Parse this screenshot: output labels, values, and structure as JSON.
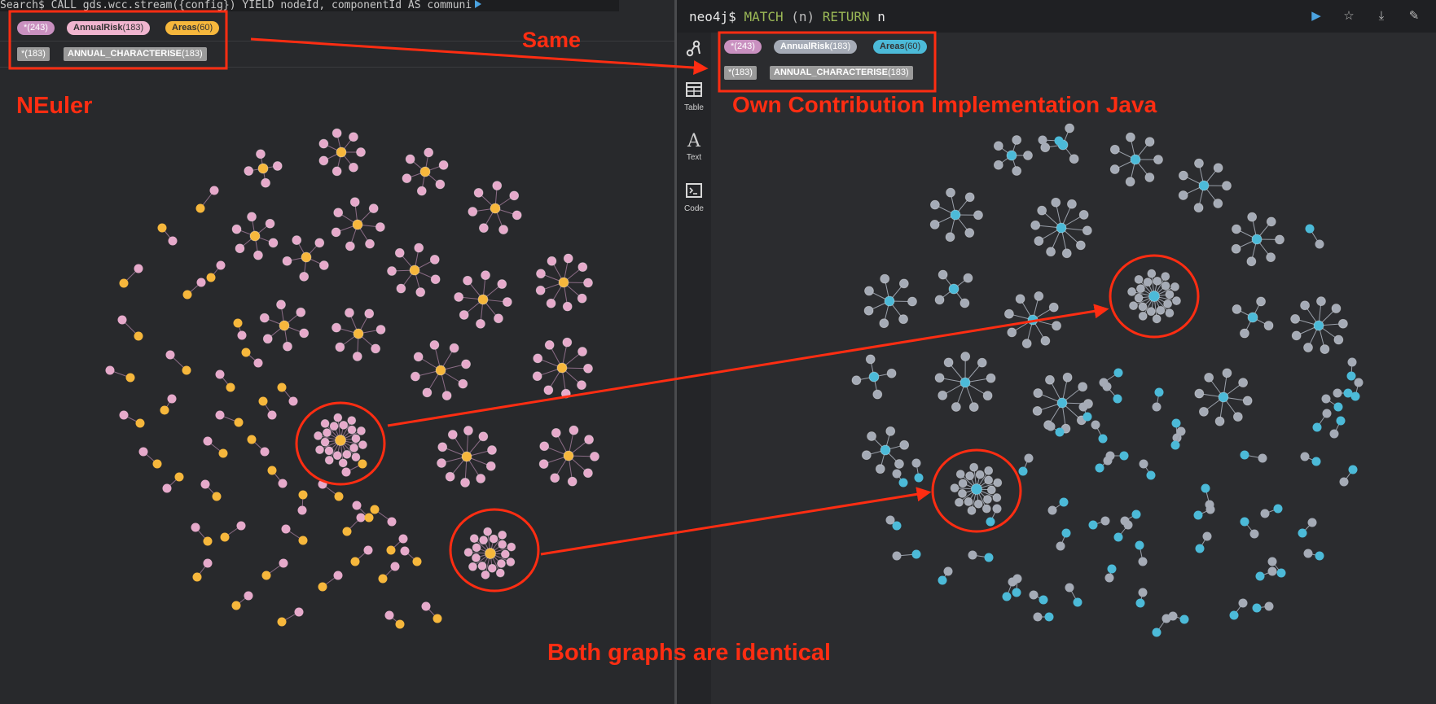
{
  "left_panel": {
    "command_text": "Search$ CALL gds.wcc.stream({config}) YIELD nodeId, componentId AS communi",
    "legend": {
      "labels": [
        {
          "name": "*",
          "count": "(243)",
          "color": "#c990c0",
          "text_color": "#ffffff"
        },
        {
          "name": "AnnualRisk",
          "count": "(183)",
          "color": "#f0b5cf",
          "text_color": "#333333"
        },
        {
          "name": "Areas",
          "count": "(60)",
          "color": "#f6b73c",
          "text_color": "#333333"
        }
      ],
      "relationships": [
        {
          "name": "*",
          "count": "(183)"
        },
        {
          "name": "ANNUAL_CHARACTERISE",
          "count": "(183)"
        }
      ]
    },
    "colors": {
      "center": "#f6b73c",
      "leaf": "#e6aacb",
      "edge": "#8b6c86"
    }
  },
  "right_panel": {
    "query": {
      "prompt": "neo4j$",
      "keyword1": "MATCH",
      "pattern": "(n)",
      "keyword2": "RETURN",
      "var": "n"
    },
    "header_icons": [
      "play-icon",
      "star-icon",
      "download-icon",
      "pin-icon"
    ],
    "sidebar": [
      {
        "icon": "graph-icon",
        "label": ""
      },
      {
        "icon": "table-icon",
        "label": "Table"
      },
      {
        "icon": "text-icon",
        "label": "Text"
      },
      {
        "icon": "code-icon",
        "label": "Code"
      }
    ],
    "legend": {
      "labels": [
        {
          "name": "*",
          "count": "(243)",
          "color": "#c990c0",
          "text_color": "#ffffff"
        },
        {
          "name": "AnnualRisk",
          "count": "(183)",
          "color": "#a5abb6",
          "text_color": "#ffffff"
        },
        {
          "name": "Areas",
          "count": "(60)",
          "color": "#4cbad8",
          "text_color": "#333333"
        }
      ],
      "relationships": [
        {
          "name": "*",
          "count": "(183)"
        },
        {
          "name": "ANNUAL_CHARACTERISE",
          "count": "(183)"
        }
      ]
    },
    "colors": {
      "center": "#4cbad8",
      "leaf": "#a5abb6",
      "edge": "#9aa0aa"
    }
  },
  "annotations": {
    "same": "Same",
    "neuler": "NEuler",
    "own": "Own Contribution Implementation Java",
    "identical": "Both graphs are identical",
    "color": "#ff2d12"
  }
}
